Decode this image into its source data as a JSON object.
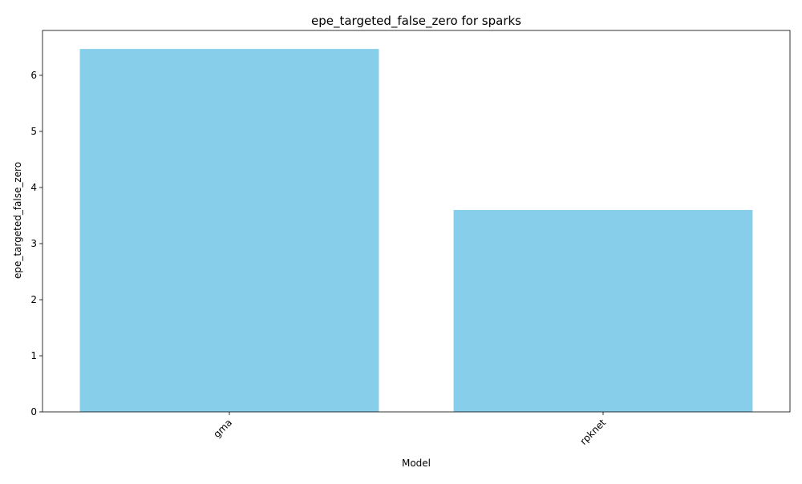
{
  "chart_data": {
    "type": "bar",
    "title": "epe_targeted_false_zero for sparks",
    "xlabel": "Model",
    "ylabel": "epe_targeted_false_zero",
    "categories": [
      "gma",
      "rpknet"
    ],
    "values": [
      6.47,
      3.6
    ],
    "ylim": [
      0,
      6.8
    ],
    "yticks": [
      0,
      1,
      2,
      3,
      4,
      5,
      6
    ],
    "xtick_rotation_deg": 45,
    "bar_color": "#87CEEB",
    "grid": false,
    "legend": "none"
  }
}
